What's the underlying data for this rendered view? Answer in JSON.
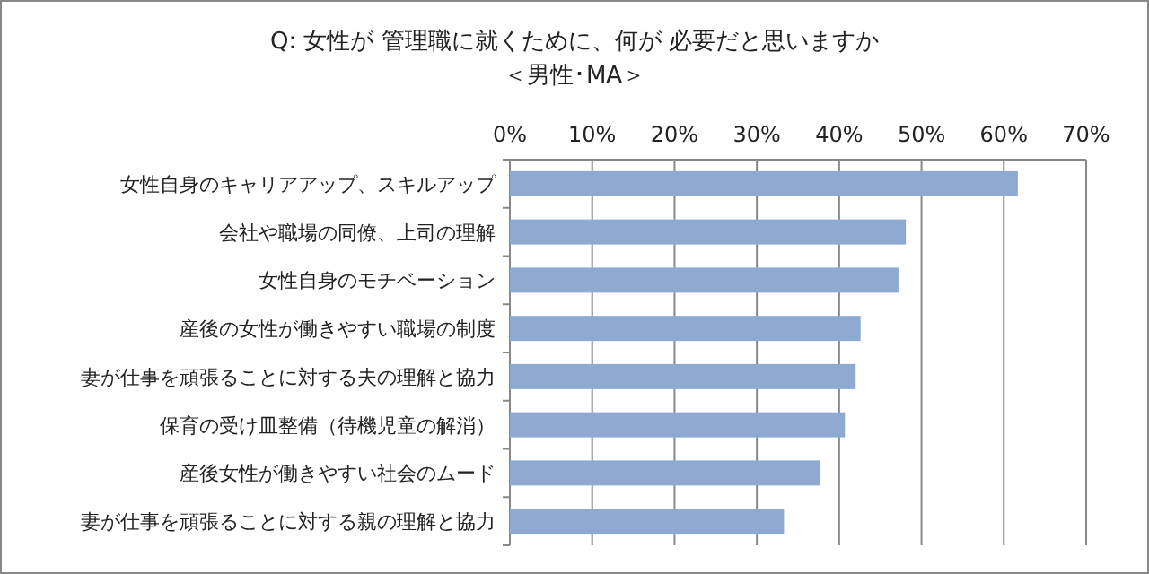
{
  "chart_data": {
    "type": "bar",
    "orientation": "horizontal",
    "title": "Q: 女性が 管理職に就くために、何が 必要だと思いますか",
    "subtitle": "＜男性･MA＞",
    "categories": [
      "女性自身のキャリアアップ、スキルアップ",
      "会社や職場の同僚、上司の理解",
      "女性自身のモチベーション",
      "産後の女性が働きやすい職場の制度",
      "妻が仕事を頑張ることに対する夫の理解と協力",
      "保育の受け皿整備（待機児童の解消）",
      "産後女性が働きやすい社会のムード",
      "妻が仕事を頑張ることに対する親の理解と協力"
    ],
    "values": [
      61.7,
      48.1,
      47.2,
      42.6,
      42.0,
      40.7,
      37.7,
      33.3
    ],
    "color": "#8eaad3",
    "xlim": [
      0,
      70
    ],
    "xticks": [
      {
        "value": 0,
        "label": "0%"
      },
      {
        "value": 10,
        "label": "10%"
      },
      {
        "value": 20,
        "label": "20%"
      },
      {
        "value": 30,
        "label": "30%"
      },
      {
        "value": 40,
        "label": "40%"
      },
      {
        "value": 50,
        "label": "50%"
      },
      {
        "value": 60,
        "label": "60%"
      },
      {
        "value": 70,
        "label": "70%"
      }
    ],
    "grid": "x"
  }
}
